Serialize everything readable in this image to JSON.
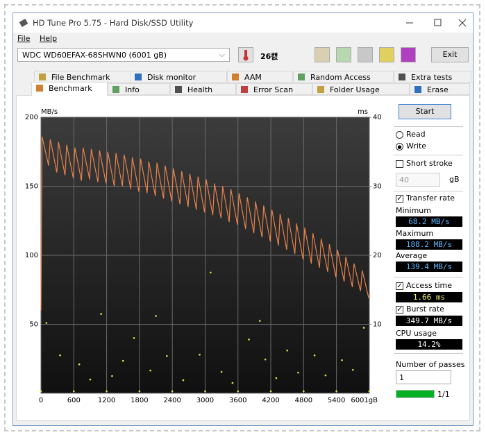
{
  "window": {
    "title": "HD Tune Pro 5.75 - Hard Disk/SSD Utility",
    "menu": [
      "File",
      "Help"
    ]
  },
  "toolbar": {
    "drive": "WDC WD60EFAX-68SHWN0 (6001 gB)",
    "temperature": "26캜",
    "exit": "Exit"
  },
  "tabs": {
    "row1": [
      "File Benchmark",
      "Disk monitor",
      "AAM",
      "Random Access",
      "Extra tests"
    ],
    "row2": [
      "Benchmark",
      "Info",
      "Health",
      "Error Scan",
      "Folder Usage",
      "Erase"
    ]
  },
  "chart_data": [
    {
      "type": "line",
      "y_label": "MB/s",
      "color": "#e8834c",
      "grid": true,
      "xlim": [
        0,
        6001
      ],
      "ylim": [
        0,
        200
      ],
      "xticks": [
        0,
        600,
        1200,
        1800,
        2400,
        3000,
        3600,
        4200,
        4800,
        5400,
        {
          "value": 6001,
          "label": "6001gB"
        }
      ],
      "yticks": [
        50,
        100,
        150,
        200
      ],
      "x": [
        0,
        20,
        140,
        170,
        290,
        320,
        440,
        470,
        590,
        620,
        740,
        770,
        890,
        920,
        1040,
        1070,
        1190,
        1220,
        1340,
        1370,
        1490,
        1520,
        1640,
        1670,
        1790,
        1820,
        1940,
        1970,
        2090,
        2120,
        2240,
        2270,
        2390,
        2420,
        2540,
        2570,
        2690,
        2720,
        2840,
        2870,
        2990,
        3020,
        3140,
        3170,
        3290,
        3320,
        3440,
        3470,
        3590,
        3620,
        3740,
        3770,
        3890,
        3920,
        4040,
        4070,
        4190,
        4220,
        4340,
        4370,
        4490,
        4520,
        4640,
        4670,
        4790,
        4820,
        4940,
        4970,
        5090,
        5120,
        5240,
        5270,
        5390,
        5420,
        5540,
        5570,
        5690,
        5720,
        5840,
        5870,
        5990
      ],
      "values": [
        60,
        186,
        165,
        184,
        160,
        182,
        158,
        180,
        156,
        178,
        154,
        178,
        155,
        177,
        153,
        176,
        152,
        175,
        150,
        174,
        150,
        173,
        148,
        171,
        146,
        170,
        145,
        168,
        143,
        167,
        141,
        165,
        139,
        163,
        137,
        161,
        135,
        159,
        133,
        157,
        131,
        155,
        129,
        152,
        127,
        150,
        124,
        148,
        122,
        145,
        119,
        142,
        116,
        139,
        113,
        136,
        110,
        133,
        107,
        130,
        104,
        127,
        101,
        123,
        97,
        120,
        94,
        116,
        91,
        112,
        88,
        108,
        84,
        104,
        81,
        99,
        77,
        94,
        74,
        89,
        69
      ]
    },
    {
      "type": "scatter",
      "y_label": "ms",
      "color": "#e4e44a",
      "xlim": [
        0,
        6001
      ],
      "ylim": [
        0,
        40
      ],
      "yticks": [
        10,
        20,
        30,
        40
      ],
      "x": [
        0,
        600,
        1200,
        1800,
        2400,
        3000,
        3600,
        4200,
        4800,
        5400,
        6000,
        100,
        350,
        700,
        900,
        1100,
        1300,
        1500,
        1700,
        2000,
        2100,
        2300,
        2600,
        2900,
        3100,
        3300,
        3500,
        3800,
        4000,
        4100,
        4300,
        4500,
        4700,
        5000,
        5200,
        5500,
        5700,
        5900
      ],
      "values": [
        0.3,
        0.3,
        0.3,
        0.3,
        0.3,
        0.3,
        0.3,
        0.3,
        0.3,
        0.3,
        0.3,
        10.2,
        5.5,
        4.2,
        2.0,
        11.5,
        2.5,
        4.7,
        8.0,
        3.3,
        11.2,
        5.4,
        1.9,
        5.6,
        17.5,
        3.1,
        1.5,
        7.8,
        10.5,
        4.9,
        2.2,
        6.2,
        3.0,
        5.5,
        2.6,
        4.8,
        3.4,
        9.5
      ]
    }
  ],
  "panel": {
    "start": "Start",
    "read": "Read",
    "write": "Write",
    "write_selected": true,
    "short_stroke": {
      "label": "Short stroke",
      "checked": false
    },
    "stroke_size": 40,
    "stroke_unit": "gB",
    "transfer_rate": {
      "label": "Transfer rate",
      "checked": true
    },
    "minimum": {
      "label": "Minimum",
      "value": "68.2 MB/s"
    },
    "maximum": {
      "label": "Maximum",
      "value": "188.2 MB/s"
    },
    "average": {
      "label": "Average",
      "value": "139.4 MB/s"
    },
    "access_time": {
      "label": "Access time",
      "checked": true,
      "value": "1.66 ms"
    },
    "burst_rate": {
      "label": "Burst rate",
      "checked": true,
      "value": "349.7 MB/s"
    },
    "cpu_usage": {
      "label": "CPU usage",
      "value": "14.2%"
    },
    "passes": {
      "label": "Number of passes",
      "value": 1,
      "progress": "1/1"
    }
  }
}
